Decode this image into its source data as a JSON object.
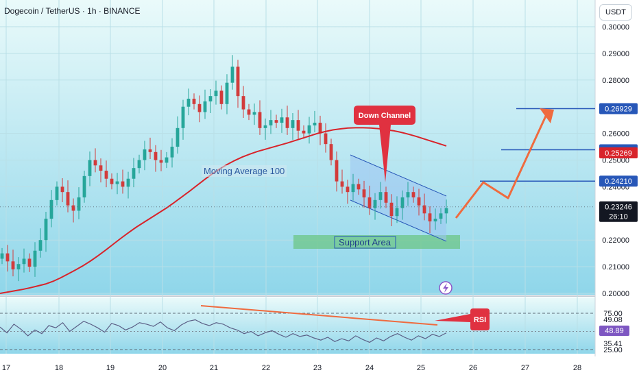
{
  "header": {
    "title": "Dogecoin / TetherUS · 1h · BINANCE",
    "currency": "USDT"
  },
  "colors": {
    "bg_top": "#eafafa",
    "bg_bottom": "#8fd6ea",
    "candle_up": "#26a69a",
    "candle_down": "#d23b3b",
    "ma": "#d8232a",
    "level_line": "#2757b8",
    "callout": "#e03140",
    "arrow": "#ef6b3f",
    "channel_fill": "#9cc5f2",
    "support_fill": "#6cc686",
    "rsi_line": "#5b5f86",
    "rsi_trend": "#ef6b3f"
  },
  "chart_data": [
    {
      "type": "candlestick",
      "title": "Dogecoin / TetherUS · 1h · BINANCE",
      "y_unit": "USDT",
      "ylim": [
        0.2,
        0.305
      ],
      "x_ticks": [
        "17",
        "18",
        "19",
        "20",
        "21",
        "22",
        "23",
        "24",
        "25",
        "26",
        "27",
        "28"
      ],
      "y_ticks": [
        "0.30000",
        "0.29000",
        "0.28000",
        "0.26000",
        "0.25000",
        "0.24000",
        "0.22000",
        "0.21000",
        "0.20000"
      ],
      "closes": [
        0.215,
        0.212,
        0.209,
        0.211,
        0.213,
        0.21,
        0.216,
        0.22,
        0.228,
        0.235,
        0.24,
        0.238,
        0.233,
        0.231,
        0.236,
        0.244,
        0.25,
        0.248,
        0.246,
        0.243,
        0.241,
        0.242,
        0.24,
        0.243,
        0.247,
        0.25,
        0.254,
        0.253,
        0.25,
        0.249,
        0.251,
        0.255,
        0.262,
        0.27,
        0.273,
        0.271,
        0.268,
        0.272,
        0.274,
        0.276,
        0.271,
        0.279,
        0.285,
        0.274,
        0.269,
        0.267,
        0.268,
        0.262,
        0.263,
        0.265,
        0.264,
        0.266,
        0.262,
        0.265,
        0.261,
        0.26,
        0.263,
        0.264,
        0.26,
        0.256,
        0.25,
        0.242,
        0.24,
        0.238,
        0.241,
        0.239,
        0.236,
        0.232,
        0.235,
        0.238,
        0.234,
        0.229,
        0.232,
        0.236,
        0.238,
        0.236,
        0.233,
        0.23,
        0.227,
        0.228,
        0.23,
        0.232
      ],
      "levels": [
        "0.26929",
        "0.25386",
        "0.25269",
        "0.24210",
        "0.23246"
      ],
      "last_price": "0.23246",
      "countdown": "26:10",
      "annotations": [
        "Moving Average 100",
        "Down Channel",
        "Support Area"
      ],
      "series": [
        {
          "name": "Moving Average 100",
          "values": [
            0.2,
            0.2005,
            0.201,
            0.2015,
            0.2021,
            0.2028,
            0.2035,
            0.2045,
            0.2058,
            0.2073,
            0.2088,
            0.2104,
            0.2122,
            0.2142,
            0.2163,
            0.2185,
            0.2207,
            0.2228,
            0.2248,
            0.2266,
            0.2284,
            0.2302,
            0.232,
            0.234,
            0.2361,
            0.2382,
            0.2404,
            0.2426,
            0.2447,
            0.2466,
            0.2483,
            0.2498,
            0.2511,
            0.2522,
            0.2532,
            0.254,
            0.2548,
            0.2556,
            0.2564,
            0.2573,
            0.2582,
            0.2591,
            0.26,
            0.2607,
            0.2613,
            0.2617,
            0.262,
            0.2621,
            0.2621,
            0.262,
            0.2618,
            0.2614,
            0.261,
            0.2604,
            0.2597,
            0.2589,
            0.258,
            0.2571,
            0.2562,
            0.2553
          ]
        }
      ]
    },
    {
      "type": "line",
      "y_ticks": [
        "75.00",
        "25.00"
      ],
      "levels": [
        "49.08",
        "48.89",
        "35.41"
      ],
      "annotations": [
        "RSI"
      ],
      "series": [
        {
          "name": "RSI",
          "values": [
            56,
            48,
            60,
            53,
            44,
            52,
            47,
            58,
            55,
            62,
            50,
            57,
            64,
            60,
            55,
            49,
            61,
            58,
            52,
            56,
            62,
            60,
            57,
            63,
            55,
            51,
            59,
            64,
            66,
            61,
            58,
            62,
            60,
            55,
            52,
            47,
            50,
            44,
            48,
            51,
            46,
            42,
            47,
            43,
            45,
            41,
            38,
            42,
            36,
            40,
            37,
            44,
            39,
            35,
            41,
            37,
            43,
            47,
            42,
            38,
            44,
            40,
            46,
            43,
            48
          ]
        }
      ]
    }
  ]
}
